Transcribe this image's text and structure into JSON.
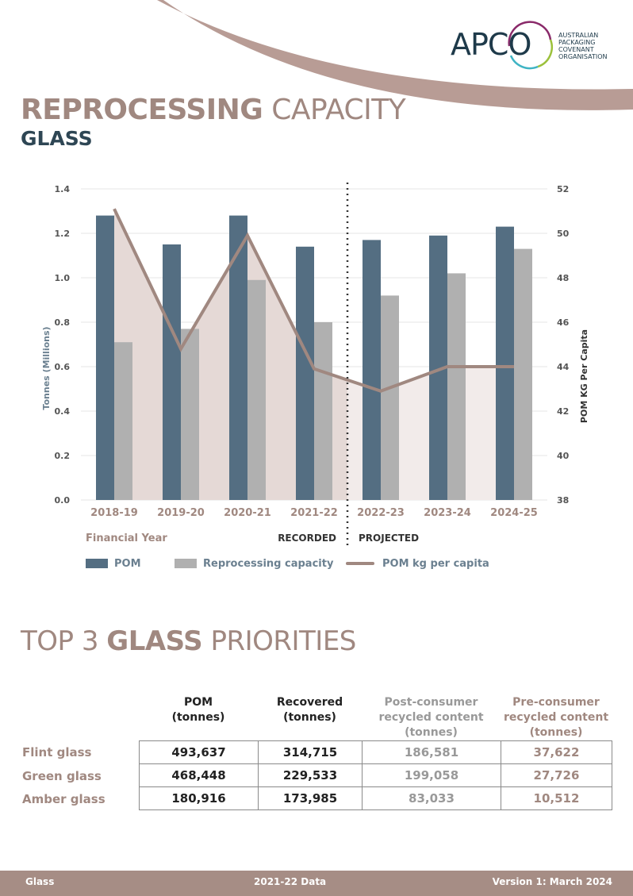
{
  "logo": {
    "text": "APCO",
    "org_lines": [
      "AUSTRALIAN",
      "PACKAGING",
      "COVENANT",
      "ORGANISATION"
    ]
  },
  "title": {
    "bold": "REPROCESSING",
    "light": "CAPACITY",
    "subtitle": "GLASS"
  },
  "chart_data": {
    "type": "bar",
    "categories": [
      "2018-19",
      "2019-20",
      "2020-21",
      "2021-22",
      "2022-23",
      "2023-24",
      "2024-25"
    ],
    "series": [
      {
        "name": "POM",
        "type": "bar",
        "axis": "left",
        "values": [
          1.28,
          1.15,
          1.28,
          1.14,
          1.17,
          1.19,
          1.23
        ],
        "color": "#546e82"
      },
      {
        "name": "Reprocessing capacity",
        "type": "bar",
        "axis": "left",
        "values": [
          0.71,
          0.77,
          0.99,
          0.8,
          0.92,
          1.02,
          1.13
        ],
        "color": "#b0b0b0"
      },
      {
        "name": "POM kg per capita",
        "type": "line",
        "axis": "right",
        "values": [
          51.1,
          44.8,
          49.9,
          43.9,
          42.9,
          44.0,
          44.0
        ],
        "color": "#a08880"
      }
    ],
    "xlabel": "Financial Year",
    "ylabel": "Tonnes (Millions)",
    "y2label": "POM KG Per Capita",
    "ylim": [
      0,
      1.4
    ],
    "y_ticks": [
      "0.0",
      "0.2",
      "0.4",
      "0.6",
      "0.8",
      "1.0",
      "1.2",
      "1.4"
    ],
    "y2lim": [
      38,
      52
    ],
    "y2_ticks": [
      "38",
      "40",
      "42",
      "44",
      "46",
      "48",
      "50",
      "52"
    ],
    "divider_after": "2021-22",
    "divider_labels": {
      "left": "RECORDED",
      "right": "PROJECTED"
    },
    "grid": true,
    "legend_position": "bottom-left",
    "fill_colors": {
      "recorded": "#e5d9d6",
      "projected": "#f2ebea"
    }
  },
  "priorities": {
    "title_light_1": "TOP 3",
    "title_bold": "GLASS",
    "title_light_2": "PRIORITIES",
    "headers": [
      {
        "lines": [
          "POM",
          "(tonnes)"
        ],
        "color": "#222222"
      },
      {
        "lines": [
          "Recovered",
          "(tonnes)"
        ],
        "color": "#222222"
      },
      {
        "lines": [
          "Post-consumer",
          "recycled content",
          "(tonnes)"
        ],
        "color": "#999999"
      },
      {
        "lines": [
          "Pre-consumer",
          "recycled content",
          "(tonnes)"
        ],
        "color": "#a08880"
      }
    ],
    "rows": [
      {
        "label": "Flint glass",
        "values": [
          "493,637",
          "314,715",
          "186,581",
          "37,622"
        ]
      },
      {
        "label": "Green glass",
        "values": [
          "468,448",
          "229,533",
          "199,058",
          "27,726"
        ]
      },
      {
        "label": "Amber glass",
        "values": [
          "180,916",
          "173,985",
          "83,033",
          "10,512"
        ]
      }
    ],
    "value_colors": [
      "#222222",
      "#222222",
      "#999999",
      "#a08880"
    ]
  },
  "footer": {
    "left": "Glass",
    "center": "2021-22 Data",
    "right": "Version 1: March 2024"
  }
}
